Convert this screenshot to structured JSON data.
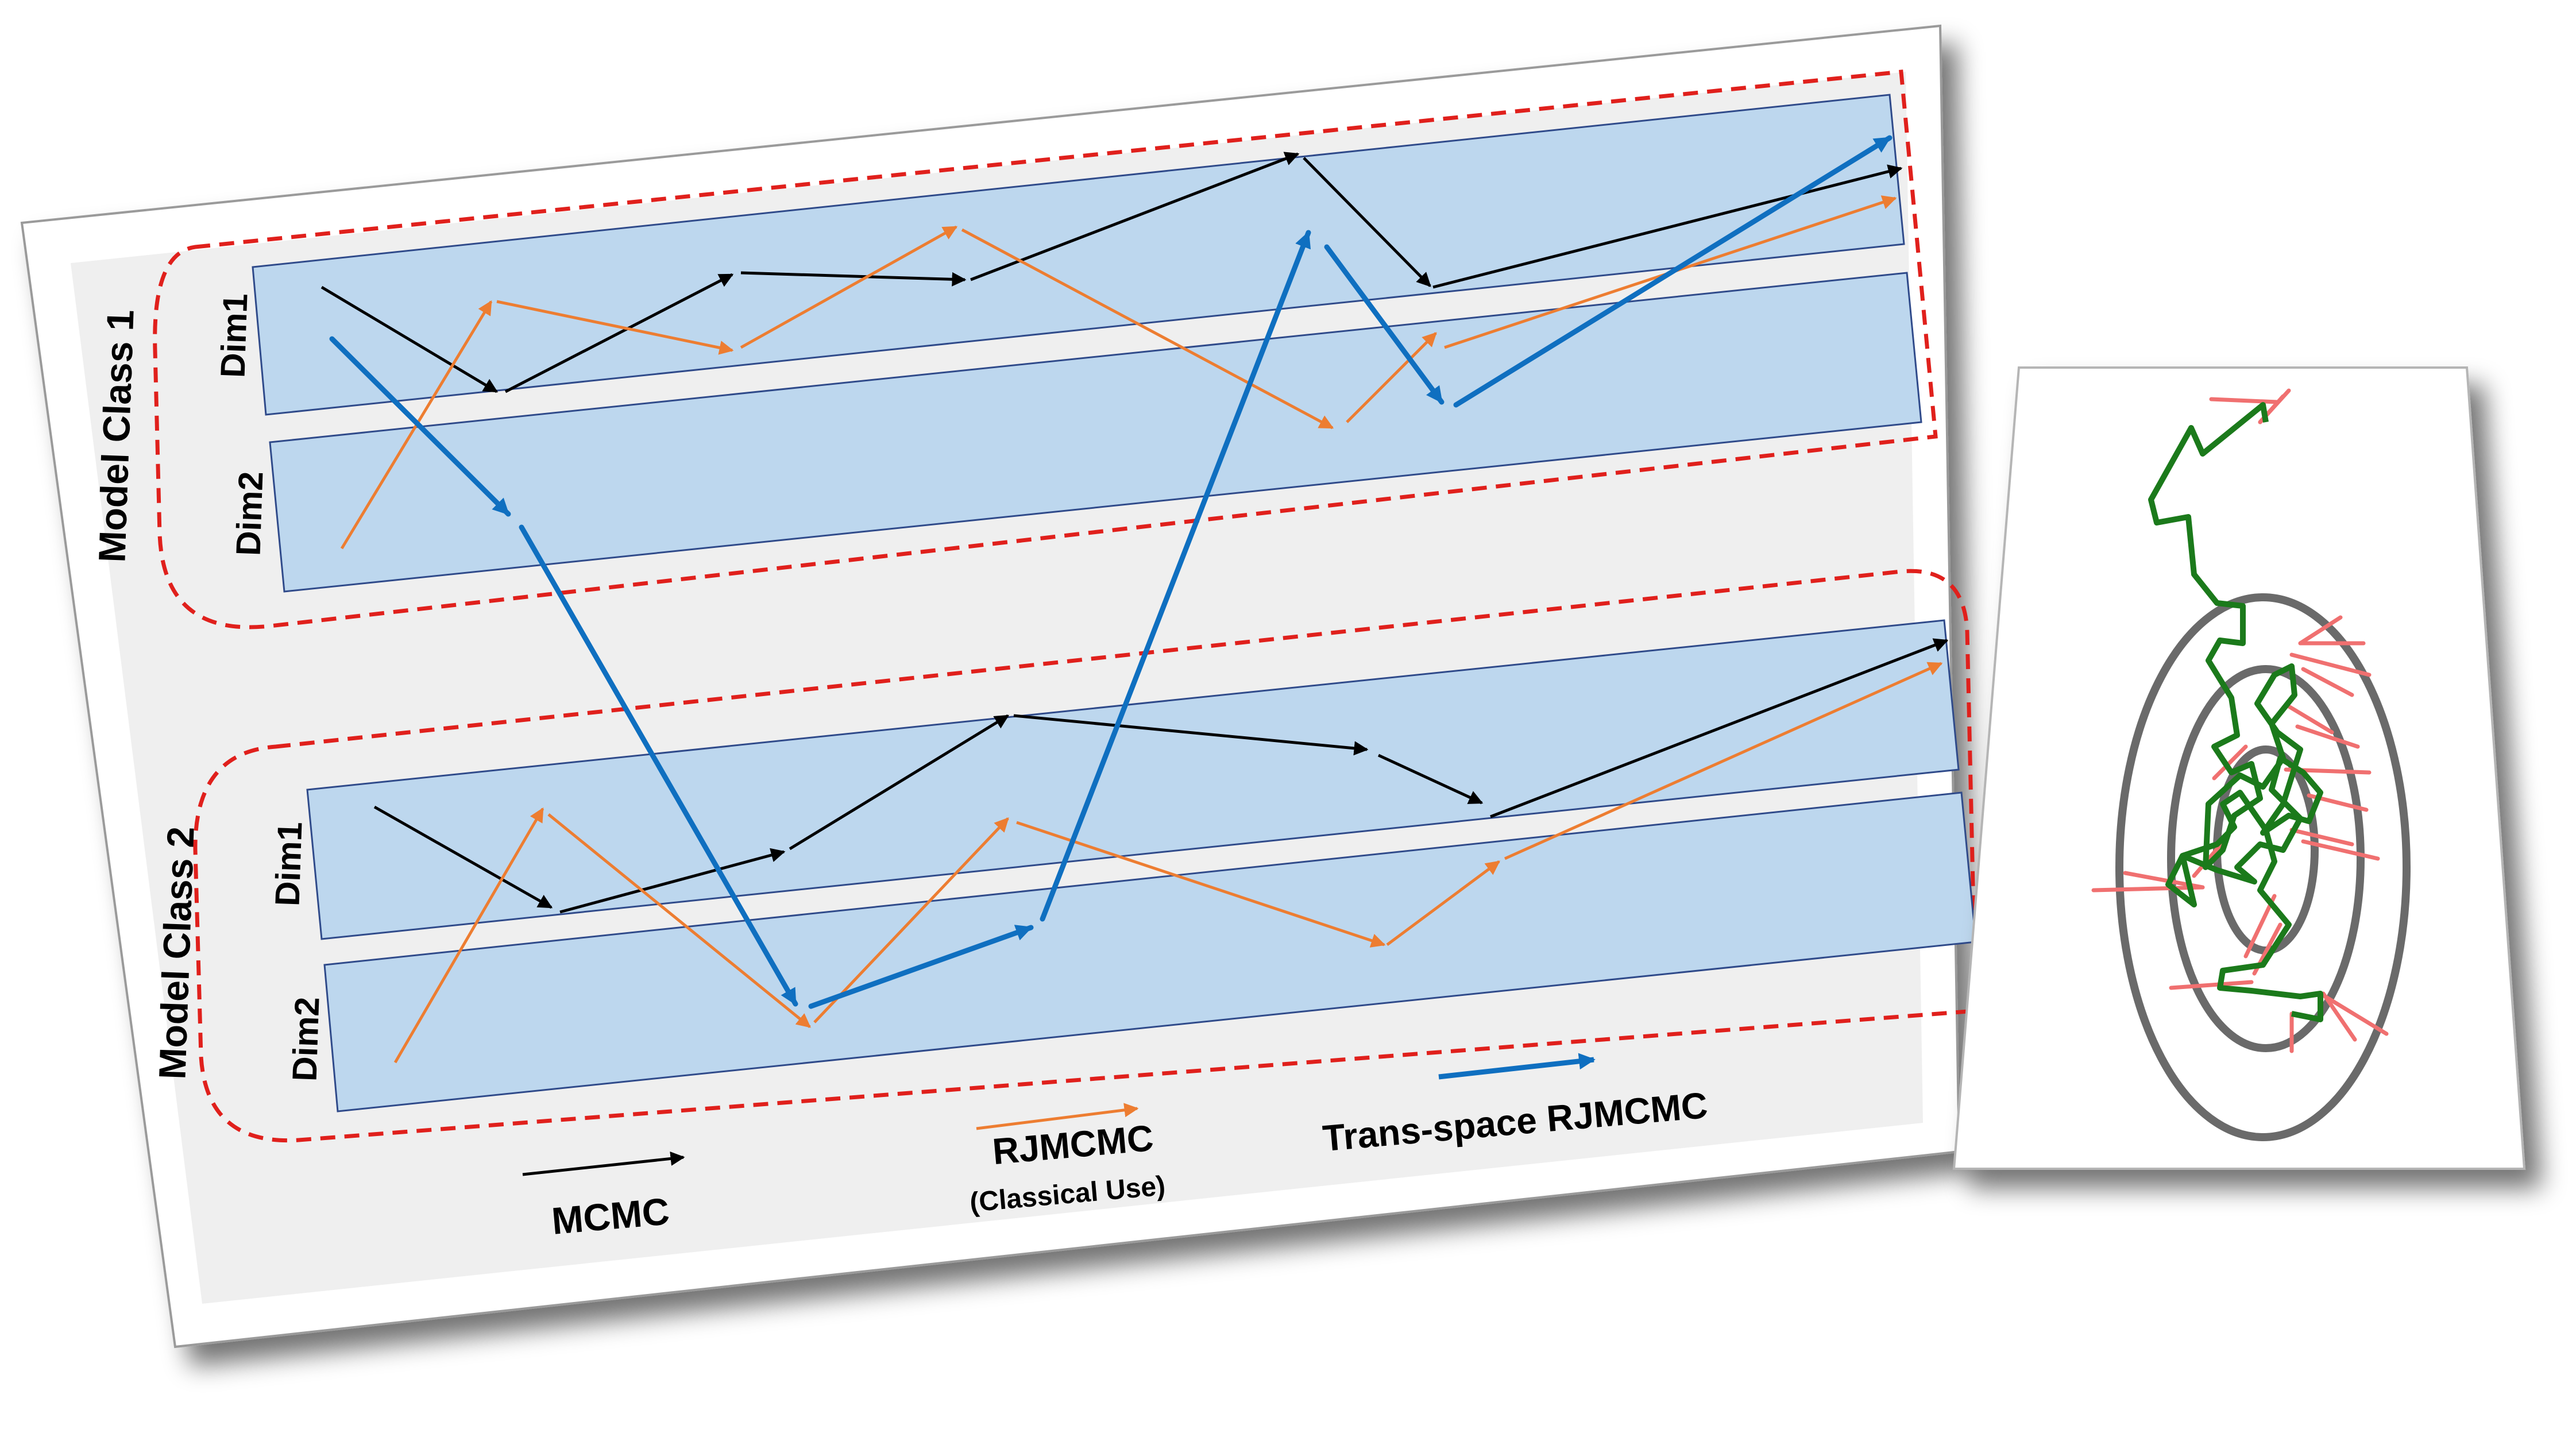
{
  "model_classes": [
    {
      "label": "Model Class 1",
      "dims": [
        "Dim1",
        "Dim2"
      ]
    },
    {
      "label": "Model Class 2",
      "dims": [
        "Dim1",
        "Dim2"
      ]
    }
  ],
  "legend": {
    "mcmc": {
      "label": "MCMC",
      "color": "#000000"
    },
    "rjmcmc": {
      "label": "RJMCMC",
      "sublabel": "(Classical Use)",
      "color": "#ed7d31"
    },
    "trans": {
      "label": "Trans-space RJMCMC",
      "color": "#0f6fc0"
    }
  },
  "colors": {
    "band_fill": "#bdd7ee",
    "band_stroke": "#2f4a8a",
    "panel_fill": "#efefef",
    "class_boundary": "#e0201c",
    "walk": "#1b7a1b",
    "rejected_proposals": "#f07070",
    "contours": "#6a6a6a"
  }
}
